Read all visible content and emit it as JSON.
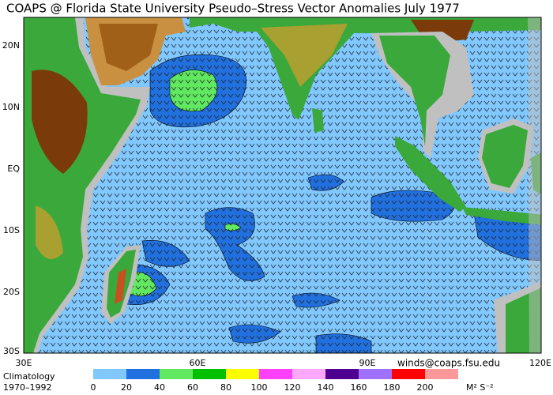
{
  "title": "COAPS @ Florida State University Pseudo–Stress Vector Anomalies  July 1977",
  "map": {
    "lat_labels": [
      "20N",
      "10N",
      "EQ",
      "10S",
      "20S",
      "30S"
    ],
    "lon_labels": [
      "30E",
      "60E",
      "90E",
      "120E"
    ]
  },
  "footer": {
    "climatology": "Climatology",
    "period": "1970–1992",
    "contact": "winds@coaps.fsu.edu"
  },
  "colorbar": {
    "ticks": [
      0,
      20,
      40,
      60,
      80,
      100,
      120,
      140,
      160,
      180,
      200
    ],
    "colors": [
      "#80c8ff",
      "#2070e0",
      "#60e860",
      "#00c000",
      "#ffff00",
      "#ff40ff",
      "#ffa8ff",
      "#500090",
      "#a070ff",
      "#ff0000",
      "#ff9898"
    ],
    "unit": "M² S⁻²"
  }
}
